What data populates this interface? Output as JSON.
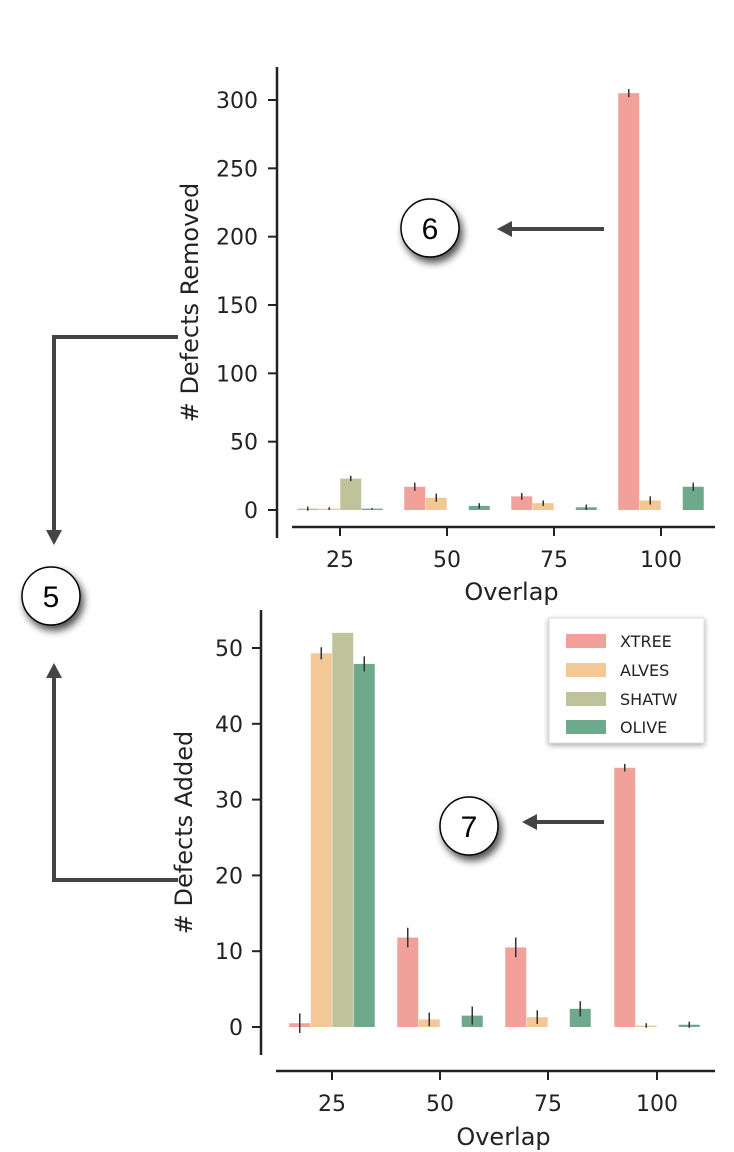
{
  "colors": {
    "XTREE": "#f2a09a",
    "ALVES": "#f4c896",
    "SHATW": "#bfc39b",
    "OLIVE": "#6ea98c",
    "axis": "#222222",
    "arrow": "#444444"
  },
  "legend": {
    "placement": "inside-top-right of lower chart",
    "items": [
      "XTREE",
      "ALVES",
      "SHATW",
      "OLIVE"
    ]
  },
  "callouts": {
    "five": "5",
    "six": "6",
    "seven": "7"
  },
  "chart_data": [
    {
      "type": "bar",
      "xlabel": "Overlap",
      "ylabel": "# Defects Removed",
      "categories": [
        "25",
        "50",
        "75",
        "100"
      ],
      "ylim": [
        0,
        320
      ],
      "yticks": [
        0,
        50,
        100,
        150,
        200,
        250,
        300
      ],
      "series": [
        {
          "name": "XTREE",
          "values": [
            1,
            17,
            10,
            305
          ],
          "errors": [
            1.5,
            3,
            2.5,
            3
          ]
        },
        {
          "name": "ALVES",
          "values": [
            1,
            9,
            5,
            7
          ],
          "errors": [
            1,
            3,
            2,
            3
          ]
        },
        {
          "name": "SHATW",
          "values": [
            23,
            0,
            0,
            0
          ],
          "errors": [
            2,
            0,
            0,
            0
          ]
        },
        {
          "name": "OLIVE",
          "values": [
            1,
            3,
            2,
            17
          ],
          "errors": [
            0.5,
            2,
            2,
            3
          ]
        }
      ]
    },
    {
      "type": "bar",
      "xlabel": "Overlap",
      "ylabel": "# Defects Added",
      "categories": [
        "25",
        "50",
        "75",
        "100"
      ],
      "ylim": [
        0,
        54
      ],
      "yticks": [
        0,
        10,
        20,
        30,
        40,
        50
      ],
      "series": [
        {
          "name": "XTREE",
          "values": [
            0.5,
            11.8,
            10.5,
            34.2
          ],
          "errors": [
            1.3,
            1.3,
            1.3,
            0.5
          ]
        },
        {
          "name": "ALVES",
          "values": [
            49.3,
            1,
            1.3,
            0.2
          ],
          "errors": [
            0.8,
            0.9,
            0.9,
            0.3
          ]
        },
        {
          "name": "SHATW",
          "values": [
            52,
            0,
            0,
            0
          ],
          "errors": [
            0,
            0,
            0,
            0
          ]
        },
        {
          "name": "OLIVE",
          "values": [
            47.9,
            1.5,
            2.4,
            0.3
          ],
          "errors": [
            1,
            1.2,
            1,
            0.4
          ]
        }
      ]
    }
  ]
}
